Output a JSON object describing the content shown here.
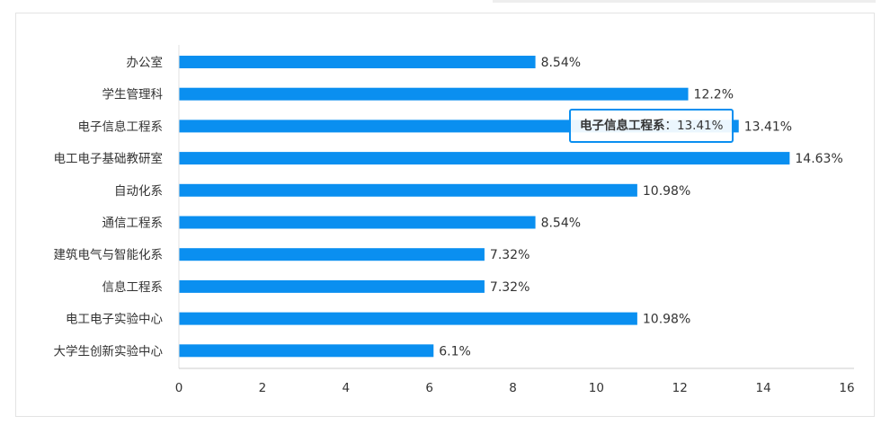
{
  "chart_data": {
    "type": "bar",
    "orientation": "horizontal",
    "categories": [
      "办公室",
      "学生管理科",
      "电子信息工程系",
      "电工电子基础教研室",
      "自动化系",
      "通信工程系",
      "建筑电气与智能化系",
      "信息工程系",
      "电工电子实验中心",
      "大学生创新实验中心"
    ],
    "values": [
      8.54,
      12.2,
      13.41,
      14.63,
      10.98,
      8.54,
      7.32,
      7.32,
      10.98,
      6.1
    ],
    "value_labels": [
      "8.54%",
      "12.2%",
      "13.41%",
      "14.63%",
      "10.98%",
      "8.54%",
      "7.32%",
      "7.32%",
      "10.98%",
      "6.1%"
    ],
    "xlim": [
      0,
      16
    ],
    "x_ticks": [
      "0",
      "2",
      "4",
      "6",
      "8",
      "10",
      "12",
      "14",
      "16"
    ],
    "bar_color": "#0a8ff0",
    "grid": false,
    "tooltip": {
      "category": "电子信息工程系",
      "separator": "：",
      "value": "13.41%"
    }
  }
}
